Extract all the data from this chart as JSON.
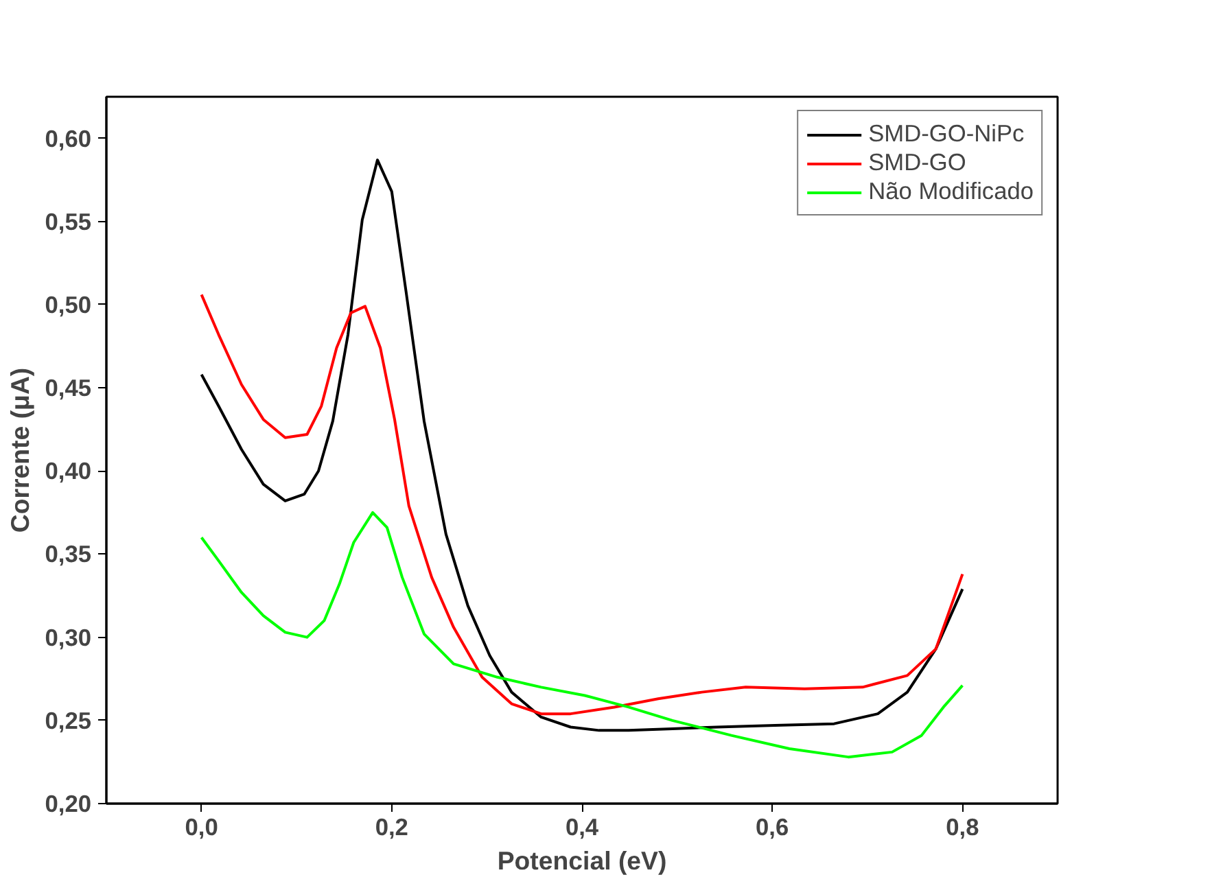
{
  "chart_data": {
    "type": "line",
    "xlabel": "Potencial (eV)",
    "ylabel": "Corrente (μA)",
    "xlim": [
      -0.1,
      0.9
    ],
    "ylim": [
      0.2,
      0.625
    ],
    "xticks": [
      {
        "value": 0.0,
        "label": "0,0"
      },
      {
        "value": 0.2,
        "label": "0,2"
      },
      {
        "value": 0.4,
        "label": "0,4"
      },
      {
        "value": 0.6,
        "label": "0,6"
      },
      {
        "value": 0.8,
        "label": "0,8"
      }
    ],
    "yticks": [
      {
        "value": 0.2,
        "label": "0,20"
      },
      {
        "value": 0.25,
        "label": "0,25"
      },
      {
        "value": 0.3,
        "label": "0,30"
      },
      {
        "value": 0.35,
        "label": "0,35"
      },
      {
        "value": 0.4,
        "label": "0,40"
      },
      {
        "value": 0.45,
        "label": "0,45"
      },
      {
        "value": 0.5,
        "label": "0,50"
      },
      {
        "value": 0.55,
        "label": "0,55"
      },
      {
        "value": 0.6,
        "label": "0,60"
      }
    ],
    "grid": false,
    "legend": "top right",
    "marker": "none",
    "line_style": "solid",
    "series": [
      {
        "name": "SMD-GO-NiPc",
        "color": "#000000",
        "x": [
          0,
          0.018,
          0.042,
          0.065,
          0.088,
          0.108,
          0.123,
          0.138,
          0.154,
          0.169,
          0.185,
          0.2,
          0.215,
          0.234,
          0.257,
          0.28,
          0.303,
          0.326,
          0.357,
          0.388,
          0.418,
          0.449,
          0.495,
          0.542,
          0.603,
          0.665,
          0.711,
          0.742,
          0.772,
          0.8
        ],
        "values": [
          0.458,
          0.439,
          0.413,
          0.392,
          0.382,
          0.386,
          0.4,
          0.43,
          0.482,
          0.551,
          0.587,
          0.568,
          0.508,
          0.43,
          0.362,
          0.319,
          0.289,
          0.267,
          0.252,
          0.246,
          0.244,
          0.244,
          0.245,
          0.246,
          0.247,
          0.248,
          0.254,
          0.267,
          0.293,
          0.329
        ]
      },
      {
        "name": "SMD-GO",
        "color": "#ff0000",
        "x": [
          0,
          0.018,
          0.042,
          0.065,
          0.088,
          0.111,
          0.126,
          0.142,
          0.157,
          0.172,
          0.188,
          0.203,
          0.218,
          0.242,
          0.265,
          0.295,
          0.326,
          0.357,
          0.388,
          0.434,
          0.48,
          0.526,
          0.572,
          0.634,
          0.695,
          0.742,
          0.772,
          0.8
        ],
        "values": [
          0.506,
          0.482,
          0.452,
          0.431,
          0.42,
          0.422,
          0.439,
          0.474,
          0.495,
          0.499,
          0.474,
          0.431,
          0.379,
          0.336,
          0.306,
          0.276,
          0.26,
          0.254,
          0.254,
          0.258,
          0.263,
          0.267,
          0.27,
          0.269,
          0.27,
          0.277,
          0.293,
          0.338
        ]
      },
      {
        "name": "Não Modificado",
        "color": "#00ff00",
        "x": [
          0,
          0.018,
          0.042,
          0.065,
          0.088,
          0.111,
          0.129,
          0.145,
          0.16,
          0.18,
          0.195,
          0.211,
          0.234,
          0.265,
          0.311,
          0.357,
          0.403,
          0.449,
          0.495,
          0.557,
          0.618,
          0.68,
          0.726,
          0.757,
          0.78,
          0.8
        ],
        "values": [
          0.36,
          0.346,
          0.327,
          0.313,
          0.303,
          0.3,
          0.31,
          0.332,
          0.357,
          0.375,
          0.366,
          0.336,
          0.302,
          0.284,
          0.276,
          0.27,
          0.265,
          0.258,
          0.25,
          0.241,
          0.233,
          0.228,
          0.231,
          0.241,
          0.258,
          0.271
        ]
      }
    ]
  }
}
